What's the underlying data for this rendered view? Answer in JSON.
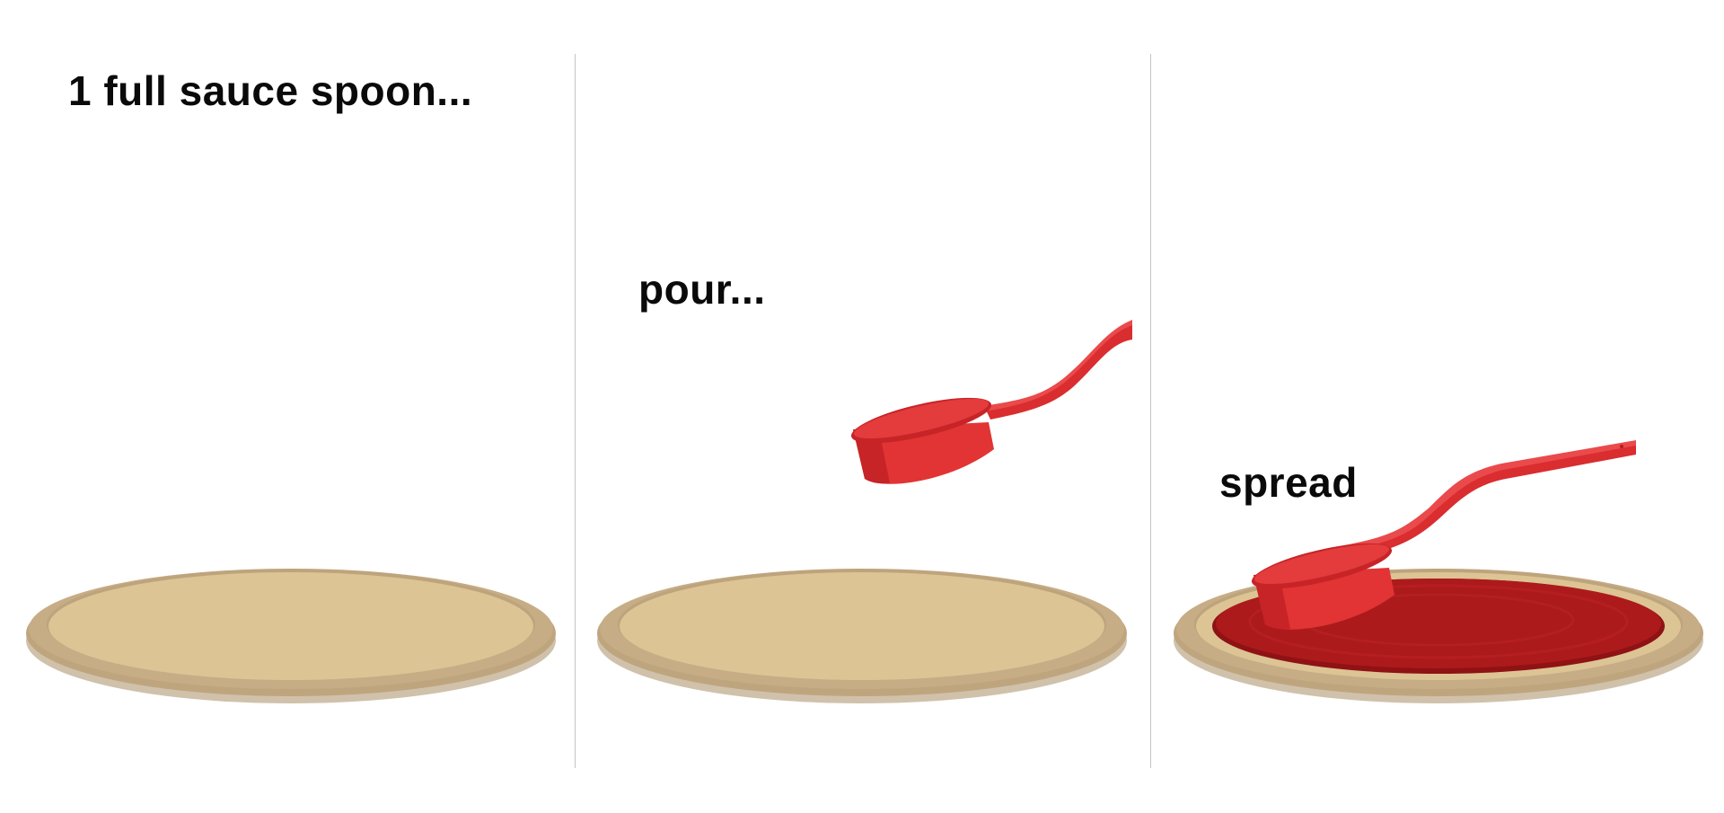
{
  "steps": [
    {
      "caption": "1 full sauce spoon..."
    },
    {
      "caption": "pour..."
    },
    {
      "caption": "spread"
    }
  ],
  "colors": {
    "dough_rim": "#bfa57e",
    "dough_top": "#dcc495",
    "dough_edge": "#a98e66",
    "sauce": "#ad1a1c",
    "sauce_dark": "#8f1214",
    "spoon": "#e23434",
    "spoon_dark": "#c72427",
    "divider": "#c4c4c4"
  }
}
